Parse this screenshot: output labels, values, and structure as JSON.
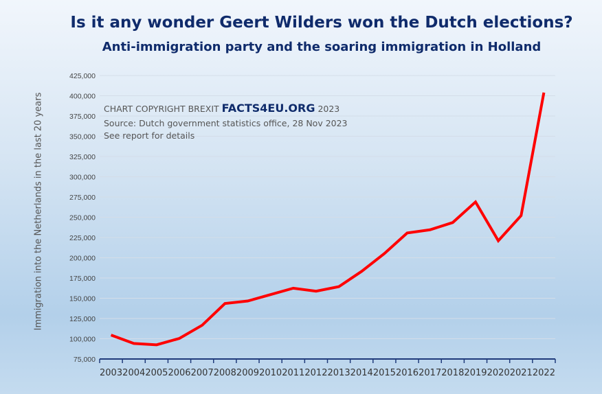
{
  "chart_data": {
    "type": "line",
    "title": "Is it any wonder Geert Wilders won the Dutch elections?",
    "subtitle": "Anti-immigration party and the soaring immigration in Holland",
    "xlabel": "",
    "ylabel": "Immigration into the Netherlands in the last 20 years",
    "categories": [
      "2003",
      "2004",
      "2005",
      "2006",
      "2007",
      "2008",
      "2009",
      "2010",
      "2011",
      "2012",
      "2013",
      "2014",
      "2015",
      "2016",
      "2017",
      "2018",
      "2019",
      "2020",
      "2021",
      "2022"
    ],
    "values": [
      104600,
      94200,
      92500,
      100400,
      116700,
      143500,
      146600,
      154500,
      162400,
      158700,
      164300,
      183200,
      205200,
      230600,
      234500,
      243500,
      268900,
      221000,
      252000,
      403900
    ],
    "ylim": [
      75000,
      425000
    ],
    "yticks": [
      "75,000",
      "100,000",
      "125,000",
      "150,000",
      "175,000",
      "200,000",
      "225,000",
      "250,000",
      "275,000",
      "300,000",
      "325,000",
      "350,000",
      "375,000",
      "400,000",
      "425,000"
    ],
    "grid": true,
    "line_color": "#ff0000",
    "annotations": {
      "copyright_prefix": "CHART COPYRIGHT BREXIT",
      "brand": "FACTS4EU.ORG",
      "copyright_year": "2023",
      "source": "Source: Dutch government statistics office, 28 Nov 2023",
      "details": "See report for details"
    }
  }
}
